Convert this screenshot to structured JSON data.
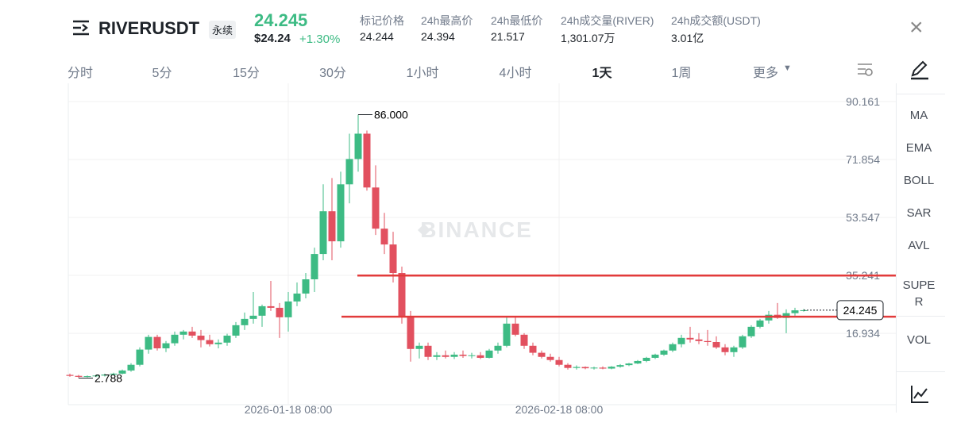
{
  "header": {
    "symbol": "RIVERUSDT",
    "contract": "永续",
    "price": "24.245",
    "usd_price": "$24.24",
    "change": "+1.30%",
    "stats": [
      {
        "label": "标记价格",
        "value": "24.244"
      },
      {
        "label": "24h最高价",
        "value": "24.394"
      },
      {
        "label": "24h最低价",
        "value": "21.517"
      },
      {
        "label": "24h成交量(RIVER)",
        "value": "1,301.07万"
      },
      {
        "label": "24h成交额(USDT)",
        "value": "3.01亿"
      }
    ]
  },
  "tabs": [
    "分时",
    "5分",
    "15分",
    "30分",
    "1小时",
    "4小时",
    "1天",
    "1周",
    "更多"
  ],
  "active_tab": "1天",
  "indicators": [
    "MA",
    "EMA",
    "BOLL",
    "SAR",
    "AVL",
    "SUPER",
    "VOL"
  ],
  "chart_data": {
    "type": "candlestick",
    "watermark": "BINANCE",
    "up_color": "#3dbb84",
    "down_color": "#e2505f",
    "line_color": "#e23b3b",
    "ylim": [
      -5.6,
      93.4
    ],
    "yticks": [
      16.934,
      35.241,
      53.547,
      71.854,
      90.161
    ],
    "categories": [
      null,
      null,
      null,
      null,
      null,
      null,
      null,
      null,
      null,
      null,
      null,
      null,
      null,
      null,
      null,
      null,
      null,
      null,
      null,
      null,
      null,
      null,
      null,
      null,
      null,
      "2026-01-18 08:00",
      null,
      null,
      null,
      null,
      null,
      null,
      null,
      null,
      null,
      null,
      null,
      null,
      null,
      null,
      null,
      null,
      null,
      null,
      null,
      null,
      null,
      null,
      null,
      null,
      null,
      null,
      null,
      null,
      null,
      null,
      "2026-02-18 08:00",
      null,
      null,
      null,
      null,
      null,
      null,
      null,
      null,
      null,
      null,
      null,
      null,
      null,
      null,
      null,
      null,
      null,
      null,
      null,
      null,
      null,
      null,
      null,
      null,
      null,
      null,
      null
    ],
    "candles": [
      [
        3.8,
        4.2,
        3.2,
        3.5
      ],
      [
        3.5,
        3.8,
        2.788,
        3.2
      ],
      [
        3.2,
        3.6,
        3.0,
        3.4
      ],
      [
        3.4,
        3.9,
        3.1,
        3.6
      ],
      [
        3.6,
        4.2,
        3.3,
        3.9
      ],
      [
        3.9,
        4.5,
        3.6,
        4.2
      ],
      [
        4.2,
        5.5,
        4.0,
        5.2
      ],
      [
        5.2,
        7.5,
        4.8,
        7.0
      ],
      [
        7.0,
        12.5,
        6.5,
        11.8
      ],
      [
        11.8,
        16.5,
        10.5,
        15.8
      ],
      [
        15.8,
        16.5,
        11.5,
        12.2
      ],
      [
        12.2,
        14.5,
        11.0,
        13.8
      ],
      [
        13.8,
        17.5,
        13.0,
        16.5
      ],
      [
        16.5,
        18.0,
        15.0,
        17.5
      ],
      [
        17.5,
        19.0,
        15.5,
        16.2
      ],
      [
        16.2,
        18.0,
        12.5,
        14.8
      ],
      [
        14.8,
        16.5,
        12.8,
        13.5
      ],
      [
        13.5,
        15.0,
        12.2,
        14.0
      ],
      [
        14.0,
        16.8,
        13.0,
        16.2
      ],
      [
        16.2,
        20.5,
        15.5,
        19.5
      ],
      [
        19.5,
        23.5,
        18.0,
        21.5
      ],
      [
        21.5,
        30.0,
        20.0,
        22.5
      ],
      [
        22.5,
        26.0,
        19.0,
        25.5
      ],
      [
        25.5,
        33.5,
        24.0,
        25.0
      ],
      [
        25.0,
        26.5,
        15.5,
        22.0
      ],
      [
        22.0,
        30.0,
        17.5,
        27.0
      ],
      [
        27.0,
        33.0,
        25.5,
        29.5
      ],
      [
        29.5,
        36.0,
        28.0,
        34.0
      ],
      [
        34.0,
        44.0,
        30.0,
        42.0
      ],
      [
        42.0,
        64.0,
        40.0,
        55.5
      ],
      [
        55.5,
        66.0,
        40.0,
        46.0
      ],
      [
        46.0,
        68.0,
        44.0,
        64.0
      ],
      [
        64.0,
        80.0,
        58.0,
        72.0
      ],
      [
        72.0,
        86.0,
        68.0,
        80.0
      ],
      [
        80.0,
        81.0,
        62.0,
        63.0
      ],
      [
        63.0,
        70.0,
        48.0,
        50.0
      ],
      [
        50.0,
        55.0,
        42.0,
        45.0
      ],
      [
        45.0,
        49.0,
        33.0,
        36.0
      ],
      [
        36.0,
        38.0,
        20.0,
        22.0
      ],
      [
        22.0,
        24.0,
        8.0,
        12.0
      ],
      [
        12.0,
        14.0,
        9.0,
        13.0
      ],
      [
        13.0,
        14.0,
        8.5,
        9.5
      ],
      [
        9.5,
        11.0,
        8.5,
        10.0
      ],
      [
        10.0,
        11.5,
        9.0,
        9.5
      ],
      [
        9.5,
        11.0,
        8.8,
        10.2
      ],
      [
        10.2,
        11.5,
        9.2,
        9.8
      ],
      [
        9.8,
        10.8,
        9.0,
        10.0
      ],
      [
        10.0,
        11.0,
        8.8,
        9.2
      ],
      [
        9.2,
        12.0,
        9.0,
        11.5
      ],
      [
        11.5,
        14.0,
        10.5,
        13.0
      ],
      [
        13.0,
        22.0,
        12.5,
        20.0
      ],
      [
        20.0,
        22.0,
        16.0,
        16.5
      ],
      [
        16.5,
        17.0,
        12.0,
        13.0
      ],
      [
        13.0,
        14.0,
        10.0,
        10.8
      ],
      [
        10.8,
        11.5,
        9.0,
        9.5
      ],
      [
        9.5,
        10.5,
        8.0,
        8.5
      ],
      [
        8.5,
        9.5,
        6.5,
        7.0
      ],
      [
        7.0,
        7.5,
        5.5,
        6.0
      ],
      [
        6.0,
        6.8,
        5.5,
        6.3
      ],
      [
        6.3,
        6.5,
        5.6,
        5.9
      ],
      [
        5.9,
        6.4,
        5.5,
        6.1
      ],
      [
        6.1,
        6.5,
        5.6,
        5.8
      ],
      [
        5.8,
        6.6,
        5.6,
        6.4
      ],
      [
        6.4,
        7.2,
        6.1,
        6.9
      ],
      [
        6.9,
        7.6,
        6.6,
        7.4
      ],
      [
        7.4,
        8.5,
        7.2,
        8.2
      ],
      [
        8.2,
        9.5,
        7.8,
        9.2
      ],
      [
        9.2,
        10.5,
        8.8,
        10.2
      ],
      [
        10.2,
        11.8,
        9.8,
        11.5
      ],
      [
        11.5,
        14.0,
        11.0,
        13.5
      ],
      [
        13.5,
        16.5,
        12.5,
        15.5
      ],
      [
        15.5,
        19.0,
        14.0,
        15.0
      ],
      [
        15.0,
        17.0,
        13.5,
        14.5
      ],
      [
        14.5,
        18.0,
        13.0,
        14.2
      ],
      [
        14.2,
        16.0,
        12.0,
        12.5
      ],
      [
        12.5,
        13.5,
        10.0,
        11.0
      ],
      [
        11.0,
        13.0,
        9.5,
        12.5
      ],
      [
        12.5,
        16.5,
        12.0,
        16.0
      ],
      [
        16.0,
        19.5,
        15.5,
        19.0
      ],
      [
        19.0,
        21.5,
        18.5,
        21.0
      ],
      [
        21.0,
        24.0,
        20.0,
        22.8
      ],
      [
        22.8,
        26.5,
        21.5,
        21.8
      ],
      [
        21.8,
        24.5,
        17.0,
        23.3
      ],
      [
        23.3,
        25.0,
        22.5,
        24.2
      ],
      [
        24.2,
        24.6,
        23.8,
        24.245
      ]
    ],
    "max_label": {
      "value": 86,
      "label": "86.000"
    },
    "min_label": {
      "value": 2.788,
      "label": "2.788"
    },
    "last_price": 24.245,
    "lines": [
      35.2,
      22.2
    ]
  }
}
